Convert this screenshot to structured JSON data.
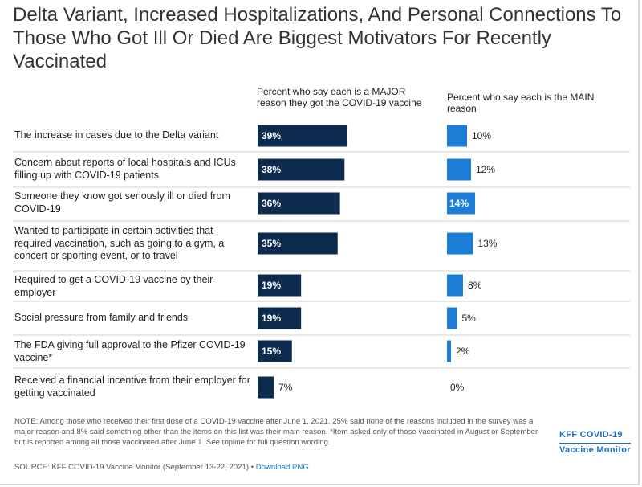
{
  "title": "Delta Variant, Increased Hospitalizations, And Personal Connections To Those Who Got Ill Or Died Are Biggest Motivators For Recently Vaccinated",
  "colors": {
    "major_bar": "#0d2a4f",
    "main_bar": "#1c7dd6",
    "divider": "#d0d0d0"
  },
  "chart_data": {
    "type": "bar",
    "categories": [
      "The increase in cases due to the Delta variant",
      "Concern about reports of local hospitals and ICUs filling up with COVID-19 patients",
      "Someone they know got seriously ill or died from COVID-19",
      "Wanted to participate in certain activities that required vaccination, such as going to a gym, a concert or sporting event, or to travel",
      "Required to get a COVID-19 vaccine by their employer",
      "Social pressure from family and friends",
      "The FDA giving full approval to the Pfizer COVID-19 vaccine*",
      "Received a financial incentive from their employer for getting vaccinated"
    ],
    "series": [
      {
        "name": "Percent who say each is a MAJOR reason they got the COVID-19 vaccine",
        "values": [
          39,
          38,
          36,
          35,
          19,
          19,
          15,
          7
        ]
      },
      {
        "name": "Percent who say each is the MAIN reason",
        "values": [
          10,
          12,
          14,
          13,
          8,
          5,
          2,
          0
        ]
      }
    ],
    "value_labels": {
      "major": [
        "39%",
        "38%",
        "36%",
        "35%",
        "19%",
        "19%",
        "15%",
        "7%"
      ],
      "main": [
        "10%",
        "12%",
        "14%",
        "13%",
        "8%",
        "5%",
        "2%",
        "0%"
      ]
    },
    "unit": "%"
  },
  "note": "NOTE: Among those who received their first dose of a COVID-19 vaccine after June 1, 2021. 25% said none of the reasons included in the survey was a major reason and 8% said something other than the items on this list was their main reason. *Item asked only of those vaccinated in August or September but is reported among all those vaccinated after June 1. See topline for full question wording.",
  "source": "SOURCE: KFF COVID-19 Vaccine Monitor (September 13-22, 2021) • ",
  "source_link": "Download PNG",
  "brand_line1": "KFF COVID-19",
  "brand_line2": "Vaccine Monitor"
}
